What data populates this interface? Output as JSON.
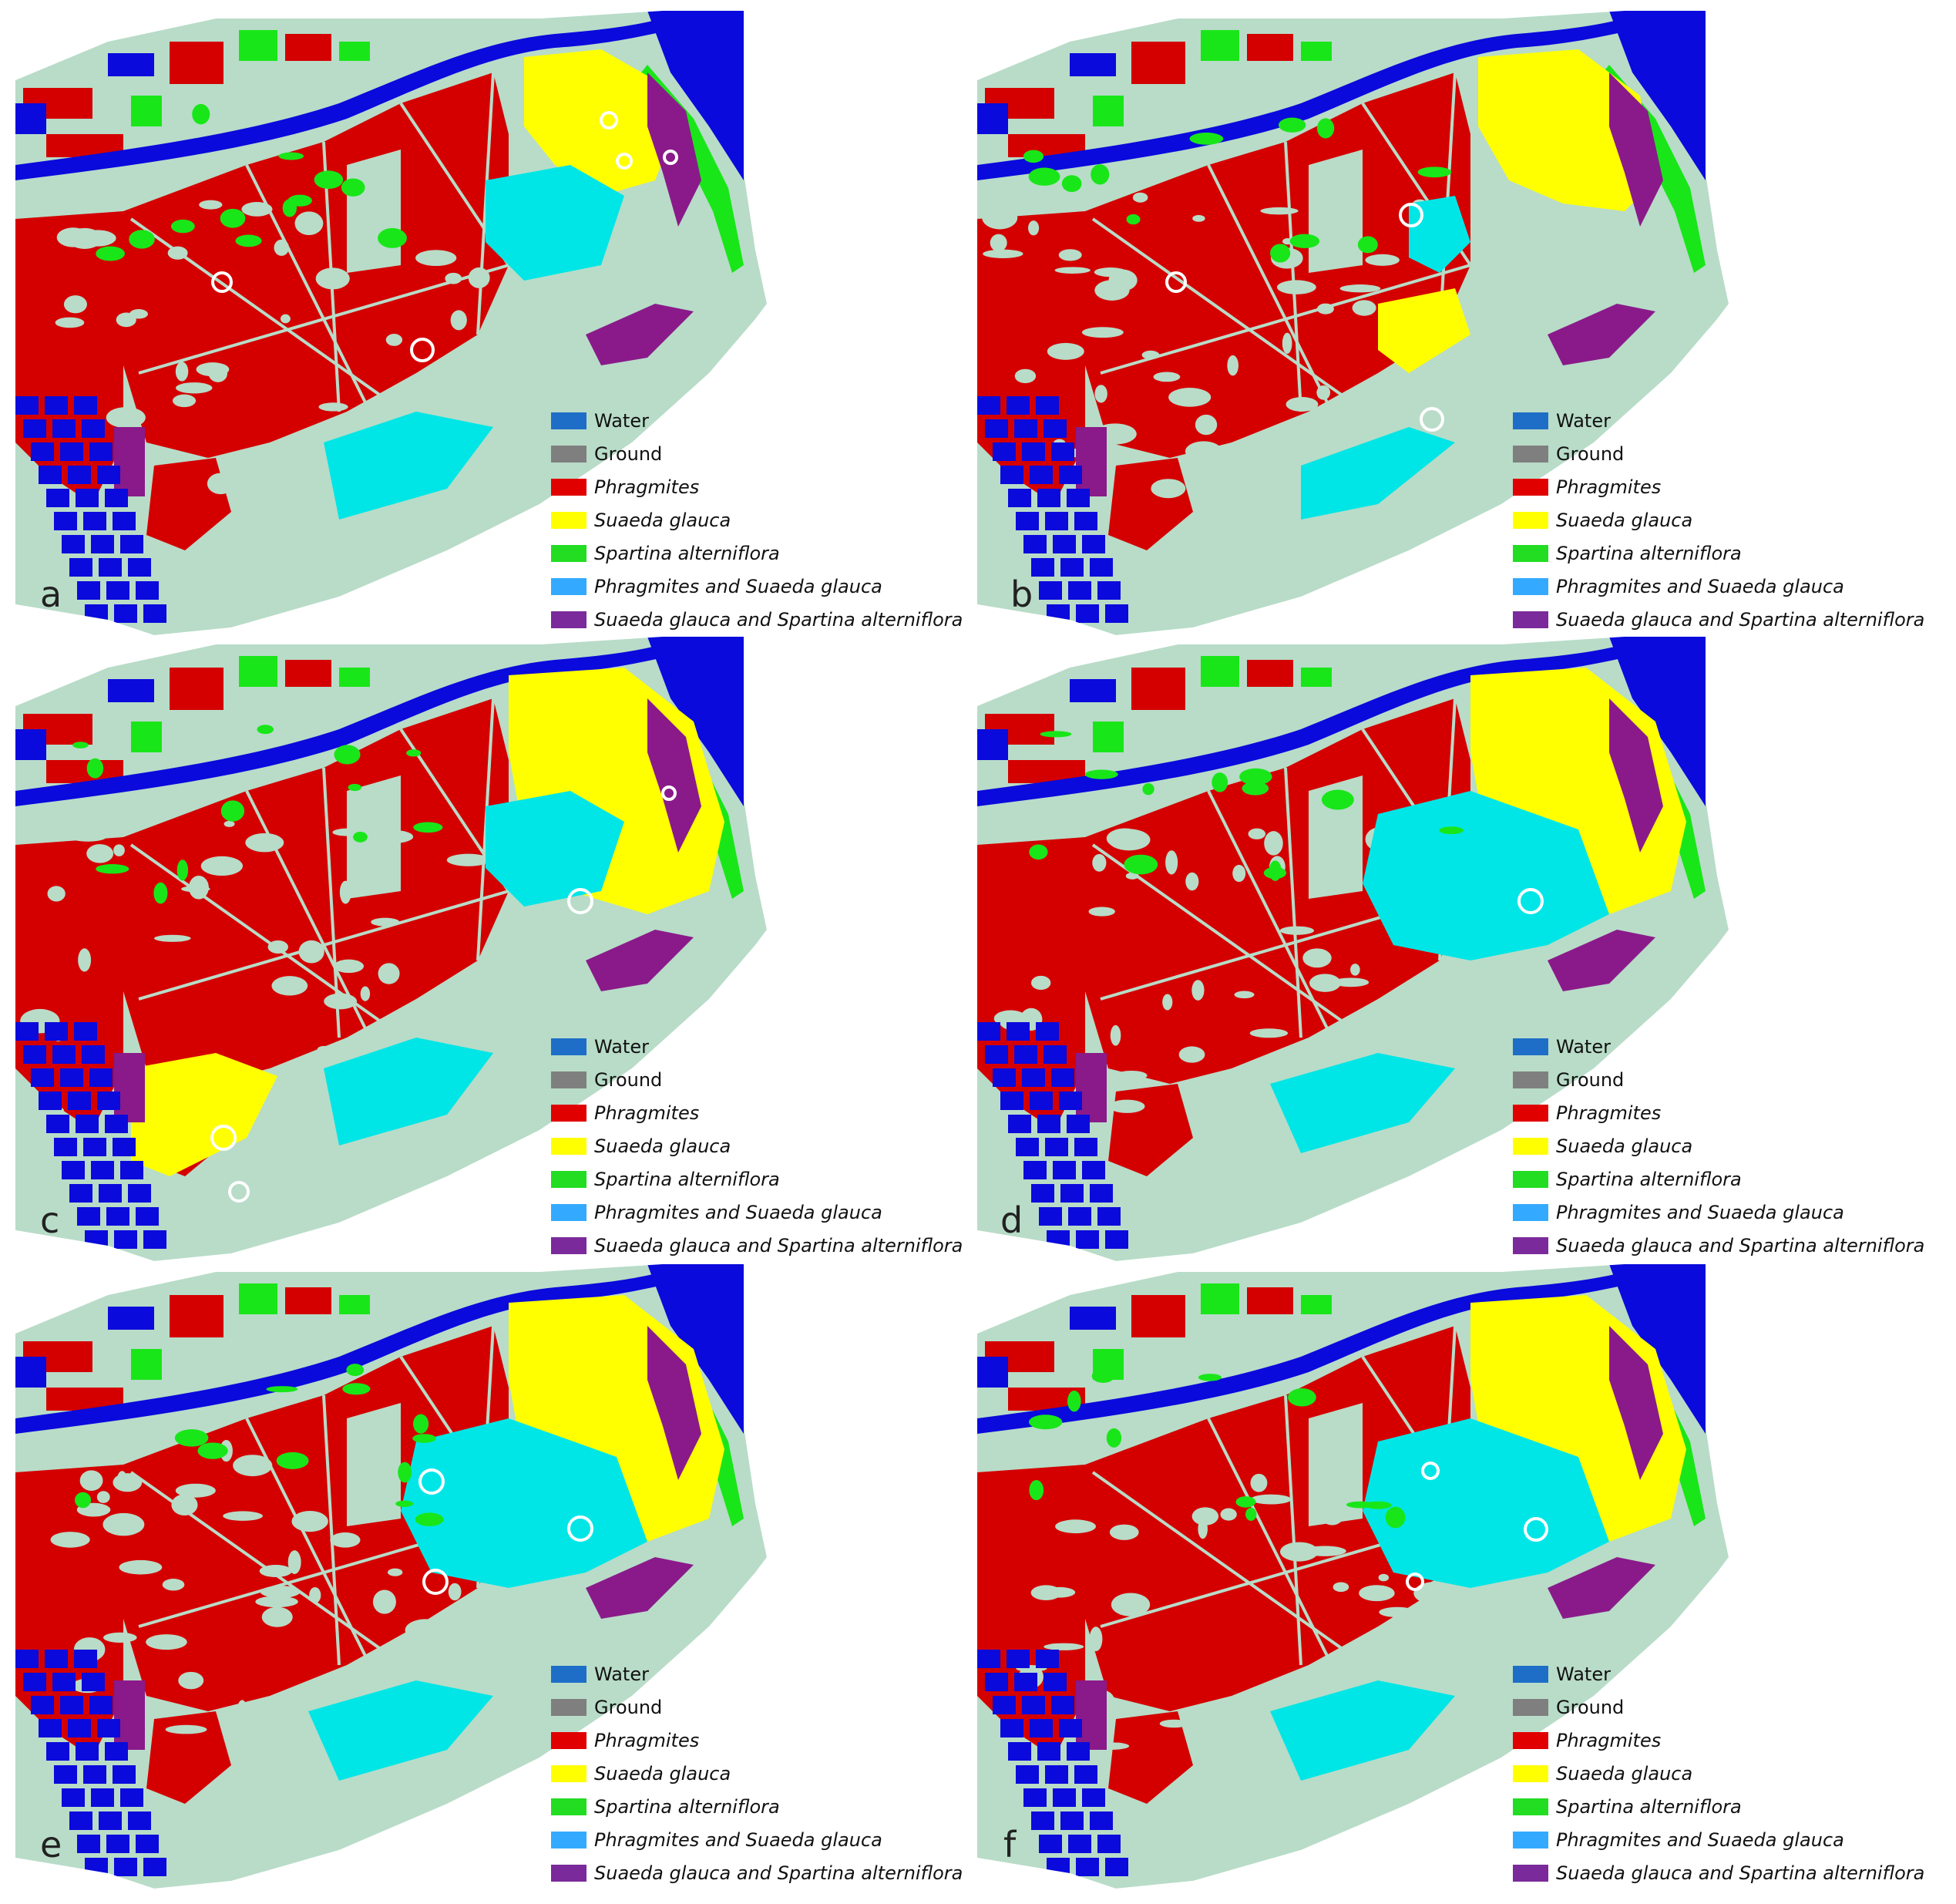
{
  "colors": {
    "water_map": "#0a0adc",
    "ground_map": "#b8dcc8",
    "phragmites": "#d40000",
    "suaeda": "#ffff00",
    "spartina": "#19e619",
    "mixed_ps": "#00e6e6",
    "mixed_ss": "#8a1a8a",
    "marker": "#ffffff"
  },
  "legend": [
    {
      "label": "Water",
      "color": "#1e6ec8",
      "italic": false
    },
    {
      "label": "Ground",
      "color": "#7f7f7f",
      "italic": false
    },
    {
      "label": "Phragmites",
      "color": "#e00000",
      "italic": true
    },
    {
      "label": "Suaeda glauca",
      "color": "#ffff00",
      "italic": true
    },
    {
      "label": "Spartina alterniflora",
      "color": "#22dd22",
      "italic": true
    },
    {
      "label": "Phragmites and Suaeda glauca",
      "color": "#33aaff",
      "italic": true
    },
    {
      "label": "Suaeda glauca and Spartina alterniflora",
      "color": "#7a2a9a",
      "italic": true
    }
  ],
  "panels": [
    {
      "letter": "a",
      "suaeda_extent": "small",
      "mixed_extent": "medium"
    },
    {
      "letter": "b",
      "suaeda_extent": "medium",
      "mixed_extent": "small"
    },
    {
      "letter": "c",
      "suaeda_extent": "large",
      "mixed_extent": "medium"
    },
    {
      "letter": "d",
      "suaeda_extent": "large",
      "mixed_extent": "large"
    },
    {
      "letter": "e",
      "suaeda_extent": "large",
      "mixed_extent": "large"
    },
    {
      "letter": "f",
      "suaeda_extent": "large",
      "mixed_extent": "large"
    }
  ]
}
